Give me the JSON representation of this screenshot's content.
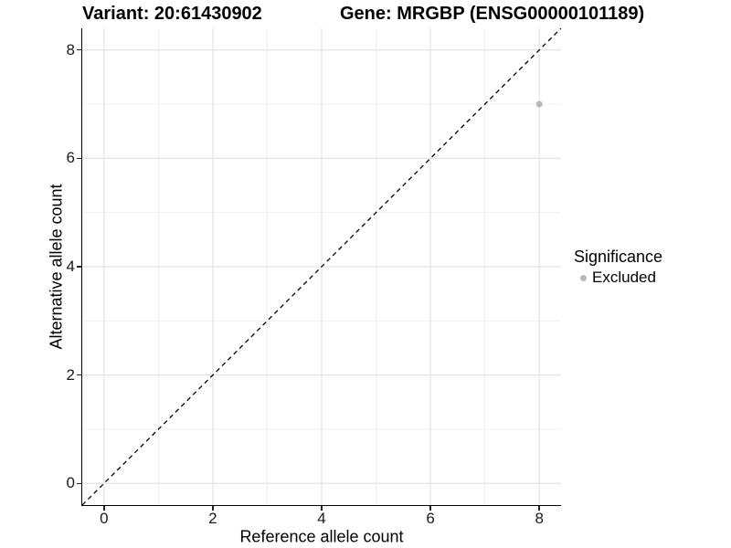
{
  "titles": {
    "variant": "Variant: 20:61430902",
    "gene": "Gene: MRGBP (ENSG00000101189)"
  },
  "axes": {
    "x": {
      "label": "Reference allele count"
    },
    "y": {
      "label": "Alternative allele count"
    }
  },
  "legend": {
    "title": "Significance",
    "items": [
      {
        "label": "Excluded",
        "color": "#b9b9b9"
      }
    ]
  },
  "colors": {
    "point": "#b9b9b9",
    "grid_major": "#e3e3e3",
    "grid_minor": "#f0f0f0",
    "reference_line": "#000000",
    "axis_text": "#1a1a1a"
  },
  "chart_data": {
    "type": "scatter",
    "title": "Variant: 20:61430902 — Gene: MRGBP (ENSG00000101189)",
    "xlabel": "Reference allele count",
    "ylabel": "Alternative allele count",
    "xlim": [
      -0.4,
      8.4
    ],
    "ylim": [
      -0.4,
      8.4
    ],
    "x_ticks": [
      0,
      2,
      4,
      6,
      8
    ],
    "y_ticks": [
      0,
      2,
      4,
      6,
      8
    ],
    "grid": "major+minor",
    "legend_position": "right",
    "reference_line": {
      "type": "identity",
      "style": "dashed",
      "from": [
        -0.4,
        -0.4
      ],
      "to": [
        8.4,
        8.4
      ]
    },
    "series": [
      {
        "name": "Excluded",
        "color": "#b9b9b9",
        "points": [
          {
            "x": 8,
            "y": 7
          }
        ]
      }
    ]
  }
}
